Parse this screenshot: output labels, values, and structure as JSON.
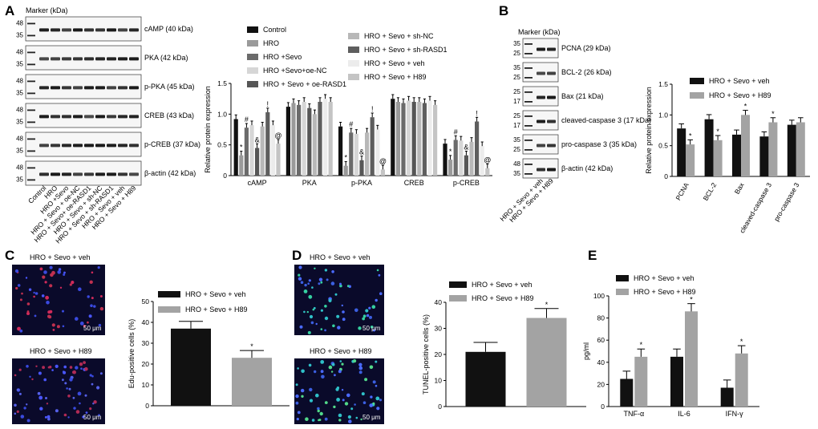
{
  "panels": {
    "A": {
      "letter": "A",
      "marker_label": "Marker (kDa)",
      "blots": [
        {
          "name": "cAMP (40 kDa)",
          "m1": "48",
          "m2": "35"
        },
        {
          "name": "PKA (42 kDa)",
          "m1": "48",
          "m2": "35"
        },
        {
          "name": "p-PKA (45 kDa)",
          "m1": "48",
          "m2": "35"
        },
        {
          "name": "CREB (43 kDa)",
          "m1": "48",
          "m2": "35"
        },
        {
          "name": "p-CREB (37 kDa)",
          "m1": "48",
          "m2": "35"
        },
        {
          "name": "β-actin (42 kDa)",
          "m1": "48",
          "m2": "35"
        }
      ],
      "lanes": [
        "Control",
        "HRO",
        "HRO +Sevo",
        "HRO + Sevo + oe-NC",
        "HRO + Sevo+ oe-RASD1",
        "HRO + Sevo + sh-NC",
        "HRO + Sevo + sh-RASD1",
        "HRO + Sevo + veh",
        "HRO + Sevo + H89"
      ]
    },
    "B": {
      "letter": "B",
      "marker_label": "Marker (kDa)",
      "blots": [
        {
          "name": "PCNA (29 kDa)",
          "m1": "35",
          "m2": "25"
        },
        {
          "name": "BCL-2 (26 kDa)",
          "m1": "35",
          "m2": "25"
        },
        {
          "name": "Bax (21 kDa)",
          "m1": "25",
          "m2": "17"
        },
        {
          "name": "cleaved-caspase 3 (17 kDa)",
          "m1": "25",
          "m2": "17"
        },
        {
          "name": "pro-caspase 3 (35 kDa)",
          "m1": "35",
          "m2": "25"
        },
        {
          "name": "β-actin (42 kDa)",
          "m1": "48",
          "m2": "35"
        }
      ],
      "lanes": [
        "HRO + Sevo + veh",
        "HRO + Sevo + H89"
      ]
    },
    "C": {
      "letter": "C",
      "image1_title": "HRO + Sevo + veh",
      "image2_title": "HRO + Sevo + H89",
      "scale": "50 μm"
    },
    "D": {
      "letter": "D",
      "image1_title": "HRO + Sevo + veh",
      "image2_title": "HRO + Sevo + H89",
      "scale": "50 μm"
    },
    "E": {
      "letter": "E"
    }
  },
  "colors": {
    "black": "#111111",
    "gray": "#a3a3a3",
    "c1": "#111111",
    "c2": "#9a9a9a",
    "c3": "#6b6b6b",
    "c4": "#d6d6d6",
    "c5": "#565656",
    "c6": "#b8b8b8",
    "c7": "#5e5e5e",
    "c8": "#ececec",
    "c9": "#c4c4c4"
  },
  "chart_data": [
    {
      "id": "A",
      "type": "bar",
      "title": "",
      "xlabel": "",
      "ylabel": "Relative protein expression",
      "ylim": [
        0,
        1.5
      ],
      "yticks": [
        "0",
        "0.5",
        "1.0",
        "1.5"
      ],
      "categories": [
        "cAMP",
        "PKA",
        "p-PKA",
        "CREB",
        "p-CREB"
      ],
      "series": [
        {
          "name": "Control",
          "values": [
            0.92,
            1.12,
            0.8,
            1.25,
            0.52
          ]
        },
        {
          "name": "HRO",
          "values": [
            0.33,
            1.18,
            0.16,
            1.2,
            0.26
          ]
        },
        {
          "name": "HRO +Sevo",
          "values": [
            0.78,
            1.15,
            0.7,
            1.18,
            0.58
          ]
        },
        {
          "name": "HRO +Sevo+oe-NC",
          "values": [
            0.82,
            1.2,
            0.68,
            1.22,
            0.57
          ]
        },
        {
          "name": "HRO + Sevo + oe-RASD1",
          "values": [
            0.45,
            1.1,
            0.25,
            1.2,
            0.33
          ]
        },
        {
          "name": "HRO + Sevo + sh-NC",
          "values": [
            0.8,
            1.0,
            0.7,
            1.2,
            0.55
          ]
        },
        {
          "name": "HRO + Sevo + sh-RASD1",
          "values": [
            1.03,
            1.2,
            0.95,
            1.18,
            0.88
          ]
        },
        {
          "name": "HRO + Sevo + veh",
          "values": [
            0.82,
            1.25,
            0.75,
            1.22,
            0.48
          ]
        },
        {
          "name": "HRO + Sevo + H89",
          "values": [
            0.52,
            1.2,
            0.1,
            1.15,
            0.12
          ]
        }
      ],
      "annotations": [
        {
          "category": "cAMP",
          "series": 1,
          "symbol": "*"
        },
        {
          "category": "cAMP",
          "series": 2,
          "symbol": "#"
        },
        {
          "category": "cAMP",
          "series": 4,
          "symbol": "&"
        },
        {
          "category": "cAMP",
          "series": 6,
          "symbol": "!"
        },
        {
          "category": "cAMP",
          "series": 8,
          "symbol": "@"
        },
        {
          "category": "p-PKA",
          "series": 1,
          "symbol": "*"
        },
        {
          "category": "p-PKA",
          "series": 2,
          "symbol": "#"
        },
        {
          "category": "p-PKA",
          "series": 4,
          "symbol": "&"
        },
        {
          "category": "p-PKA",
          "series": 6,
          "symbol": "!"
        },
        {
          "category": "p-PKA",
          "series": 8,
          "symbol": "@"
        },
        {
          "category": "p-CREB",
          "series": 1,
          "symbol": "*"
        },
        {
          "category": "p-CREB",
          "series": 2,
          "symbol": "#"
        },
        {
          "category": "p-CREB",
          "series": 4,
          "symbol": "&"
        },
        {
          "category": "p-CREB",
          "series": 6,
          "symbol": "!"
        },
        {
          "category": "p-CREB",
          "series": 8,
          "symbol": "@"
        }
      ]
    },
    {
      "id": "B",
      "type": "bar",
      "title": "",
      "xlabel": "",
      "ylabel": "Relative protein expression",
      "ylim": [
        0,
        1.5
      ],
      "yticks": [
        "0",
        "0.5",
        "1.0",
        "1.5"
      ],
      "categories": [
        "PCNA",
        "BCL-2",
        "Bax",
        "cleaved-caspase 3",
        "pro-caspase 3"
      ],
      "series": [
        {
          "name": "HRO + Sevo + veh",
          "values": [
            0.78,
            0.93,
            0.68,
            0.65,
            0.84
          ]
        },
        {
          "name": "HRO + Sevo + H89",
          "values": [
            0.52,
            0.59,
            1.0,
            0.88,
            0.88
          ]
        }
      ],
      "annotations": [
        {
          "category": "PCNA",
          "series": 1,
          "symbol": "*"
        },
        {
          "category": "BCL-2",
          "series": 1,
          "symbol": "*"
        },
        {
          "category": "Bax",
          "series": 1,
          "symbol": "*"
        },
        {
          "category": "cleaved-caspase 3",
          "series": 1,
          "symbol": "*"
        }
      ]
    },
    {
      "id": "C",
      "type": "bar",
      "title": "",
      "xlabel": "",
      "ylabel": "Edu-positive cells (%)",
      "ylim": [
        0,
        50
      ],
      "yticks": [
        "0",
        "10",
        "20",
        "30",
        "40",
        "50"
      ],
      "categories": [
        ""
      ],
      "series": [
        {
          "name": "HRO + Sevo + veh",
          "values": [
            37
          ]
        },
        {
          "name": "HRO + Sevo + H89",
          "values": [
            23
          ]
        }
      ],
      "annotations": [
        {
          "category": "",
          "series": 1,
          "symbol": "*"
        }
      ]
    },
    {
      "id": "D",
      "type": "bar",
      "title": "",
      "xlabel": "",
      "ylabel": "TUNEL-positive cells (%)",
      "ylim": [
        0,
        40
      ],
      "yticks": [
        "0",
        "10",
        "20",
        "30",
        "40"
      ],
      "categories": [
        ""
      ],
      "series": [
        {
          "name": "HRO + Sevo + veh",
          "values": [
            21
          ]
        },
        {
          "name": "HRO + Sevo + H89",
          "values": [
            34
          ]
        }
      ],
      "annotations": [
        {
          "category": "",
          "series": 1,
          "symbol": "*"
        }
      ]
    },
    {
      "id": "E",
      "type": "bar",
      "title": "",
      "xlabel": "",
      "ylabel": "pg/ml",
      "ylim": [
        0,
        100
      ],
      "yticks": [
        "0",
        "20",
        "40",
        "60",
        "80",
        "100"
      ],
      "categories": [
        "TNF-α",
        "IL-6",
        "IFN-γ"
      ],
      "series": [
        {
          "name": "HRO + Sevo + veh",
          "values": [
            25,
            45,
            17
          ]
        },
        {
          "name": "HRO + Sevo + H89",
          "values": [
            45,
            86,
            48
          ]
        }
      ],
      "annotations": [
        {
          "category": "TNF-α",
          "series": 1,
          "symbol": "*"
        },
        {
          "category": "IL-6",
          "series": 1,
          "symbol": "*"
        },
        {
          "category": "IFN-γ",
          "series": 1,
          "symbol": "*"
        }
      ]
    }
  ]
}
